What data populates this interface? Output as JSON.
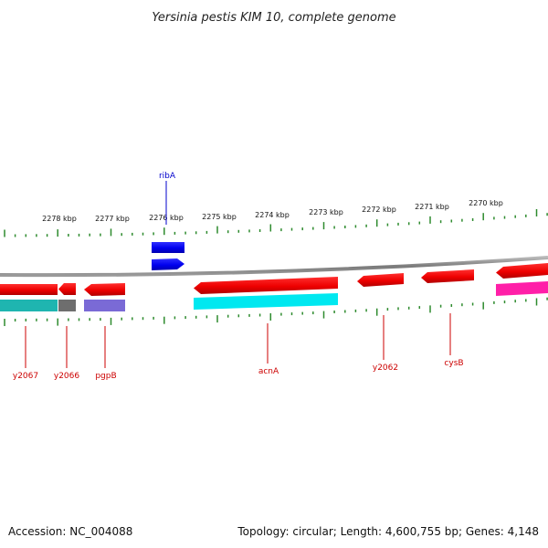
{
  "title": "Yersinia pestis KIM 10, complete genome",
  "ruler": {
    "tick_color": "#2e8b2e",
    "labels": [
      "2278 kbp",
      "2277 kbp",
      "2276 kbp",
      "2275 kbp",
      "2274 kbp",
      "2273 kbp",
      "2272 kbp",
      "2271 kbp",
      "2270 kbp"
    ]
  },
  "genes": [
    {
      "name": "y2067",
      "color": "#cc0000"
    },
    {
      "name": "y2066",
      "color": "#cc0000"
    },
    {
      "name": "pgpB",
      "color": "#cc0000"
    },
    {
      "name": "ribA",
      "color": "#0000cc"
    },
    {
      "name": "acnA",
      "color": "#cc0000"
    },
    {
      "name": "y2062",
      "color": "#cc0000"
    },
    {
      "name": "cysB",
      "color": "#cc0000"
    }
  ],
  "colors": {
    "forward_gene": "#0000ee",
    "reverse_gene": "#ee0000",
    "backbone": "#888888",
    "cog_teal": "#1fb5b0",
    "cog_gray": "#707070",
    "cog_purple": "#7a6ad6",
    "cog_cyan": "#00e8f0",
    "cog_magenta": "#ff1fa8"
  },
  "footer": {
    "accession": "Accession: NC_004088",
    "summary": "Topology: circular; Length: 4,600,755 bp; Genes: 4,148"
  }
}
